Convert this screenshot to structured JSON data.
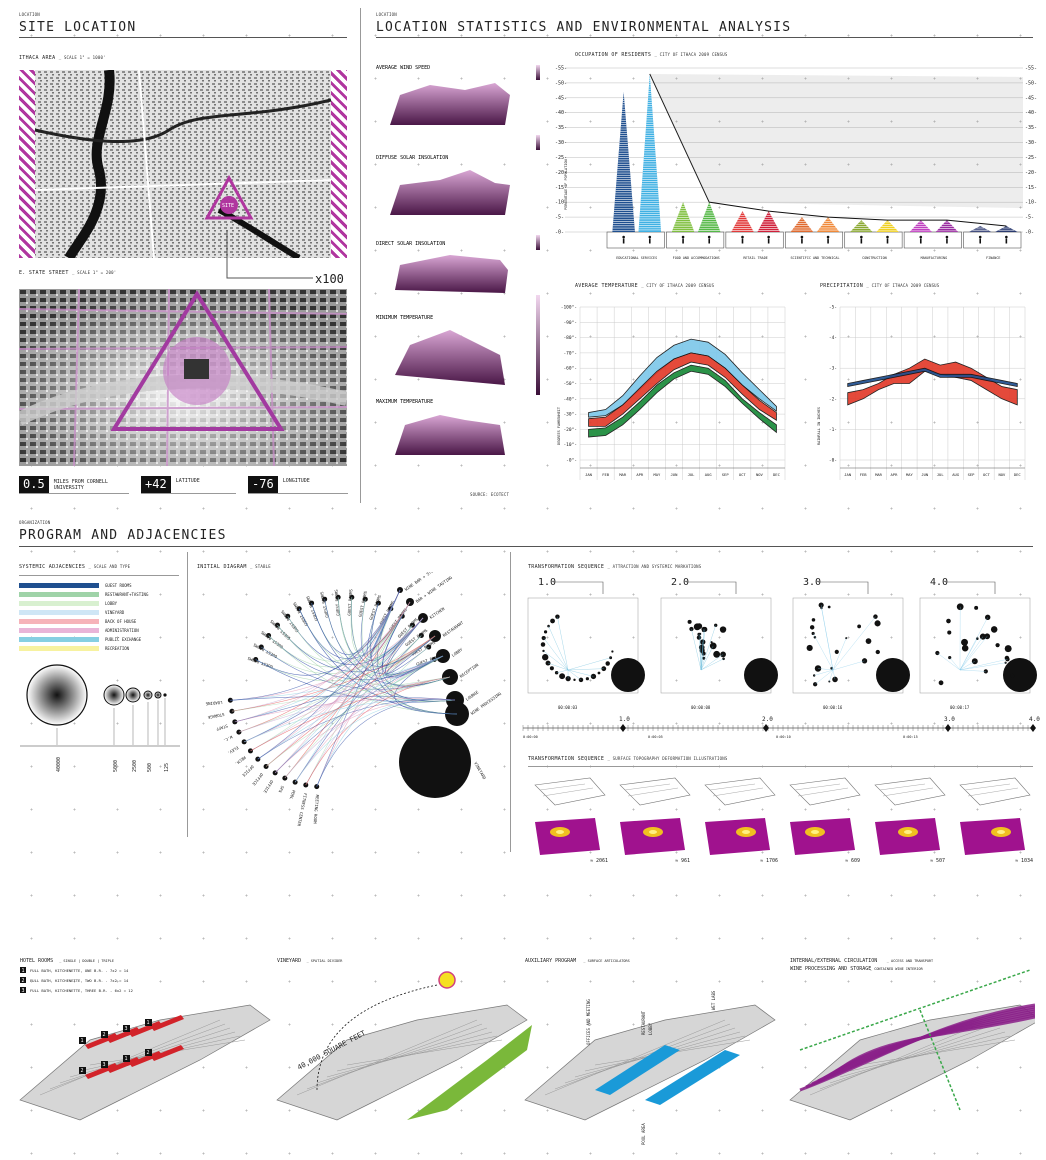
{
  "sections": {
    "site_location": {
      "kicker": "LOCATION",
      "title": "SITE LOCATION",
      "map1_label": "ITHACA AREA",
      "map1_scale": "_ SCALE 1\" = 1000'",
      "map2_label": "E. STATE STREET",
      "map2_scale": "_ SCALE 1\" = 200'",
      "site_marker": "SITE",
      "zoom": "x100",
      "stats": [
        {
          "value": "0.5",
          "label": "MILES FROM CORNELL UNIVERSITY"
        },
        {
          "value": "+42",
          "label": "LATITUDE"
        },
        {
          "value": "-76",
          "label": "LONGITUDE"
        }
      ]
    },
    "statistics": {
      "kicker": "LOCATION",
      "title": "LOCATION STATISTICS AND ENVIRONMENTAL ANALYSIS",
      "terrain_labels": [
        "AVERAGE WIND SPEED",
        "DIFFUSE SOLAR INSOLATION",
        "DIRECT SOLAR INSOLATION",
        "MINIMUM TEMPERATURE",
        "MAXIMUM TEMPERATURE"
      ],
      "source": "SOURCE: ECOTECT"
    },
    "program": {
      "kicker": "ORGANIZATION",
      "title": "PROGRAM AND ADJACENCIES",
      "systemic_title": "SYSTEMIC ADJACENCIES",
      "systemic_sub": "_ SCALE AND TYPE",
      "initial_title": "INITIAL DIAGRAM",
      "initial_sub": "_ STABLE",
      "trans1_title": "TRANSFORMATION SEQUENCE",
      "trans1_sub": "_ ATTRACTION AND SYSTEMIC MARKATIONS",
      "trans2_title": "TRANSFORMATION SEQUENCE",
      "trans2_sub": "_ SURFACE TOPOGRAPHY DEFORMATION ILLUSTRATIONS"
    }
  },
  "legend": [
    {
      "label": "GUEST ROOMS",
      "color": "#1f4f8f"
    },
    {
      "label": "RESTAURANT+TASTING",
      "color": "#9fd3a8"
    },
    {
      "label": "LOBBY",
      "color": "#d8f0d0"
    },
    {
      "label": "VINEYARD",
      "color": "#cfe6f5"
    },
    {
      "label": "BACK OF HOUSE",
      "color": "#f6b3b9"
    },
    {
      "label": "ADMINISTRATION",
      "color": "#e9b5d8"
    },
    {
      "label": "PUBLIC EXCHANGE",
      "color": "#86cfe2"
    },
    {
      "label": "RECREATION",
      "color": "#f7f2a0"
    }
  ],
  "scale_circles": [
    "40000",
    "5000",
    "2500",
    "500",
    "125"
  ],
  "stages": [
    "1.0",
    "2.0",
    "3.0",
    "4.0"
  ],
  "stage_times": [
    "00:00:03",
    "00:00:08",
    "00:00:16",
    "00:00:17"
  ],
  "timeline_ticks": [
    "0:00:00",
    "0:00:05",
    "0:00:10",
    "0:00:15"
  ],
  "topo_values": [
    "≈ 2061",
    "≈ 961",
    "≈ 1706",
    "≈ 609",
    "≈ 507",
    "≈ 1034"
  ],
  "chord_left_labels": [
    "GUEST ROOMS",
    "GUEST ROOMS",
    "GUEST ROOMS",
    "GUEST ROOMS",
    "GUEST ROOMS",
    "GUEST ROOMS",
    "GUEST ROOMS",
    "GUEST ROOMS",
    "GUEST ROOMS",
    "GUEST ROOMS",
    "GUEST ROOMS",
    "GUEST ROOMS",
    "GUEST ROOMS",
    "GUEST ROOMS",
    "GUEST ROOMS",
    "GUEST ROOMS",
    "GUEST ROOMS",
    "GUEST ROOMS"
  ],
  "chord_right_labels": [
    "WINE BAR + STORAGE",
    "BAR + WINE TASTING",
    "KITCHEN",
    "RESTAURANT",
    "LOBBY",
    "RECEPTION",
    "LOUNGE",
    "WINE PROCESSING",
    "VINEYARD"
  ],
  "chord_bottom_labels": [
    "MEETING ROOM",
    "FITNESS CENTER",
    "POOL",
    "SPA",
    "OFFICE",
    "OFFICE",
    "OFFICE",
    "MECH.",
    "ELEV.",
    "W.C.",
    "STAFF",
    "STORAGE",
    "LOADING"
  ],
  "bottom_panels": [
    {
      "title": "HOTEL ROOMS",
      "sub": "_ SINGLE | DOUBLE | TRIPLE"
    },
    {
      "title": "VINEYARD",
      "sub": "_ SPATIAL DIVIDER"
    },
    {
      "title": "AUXILIARY PROGRAM",
      "sub": "_ SURFACE ARTICULATORS"
    },
    {
      "title": "INTERNAL/EXTERNAL CIRCULATION",
      "sub": "_ ACCESS AND TRANSPORT"
    }
  ],
  "hotel_room_types": [
    {
      "num": "1",
      "text": "FULL BATH, KITCHENETTE, ONE B.R. - 7x2 = 14"
    },
    {
      "num": "2",
      "text": "FULL BATH, KITCHENETTE, TWO B.R. - 7x2 = 14"
    },
    {
      "num": "3",
      "text": "FULL BATH, KITCHENETTE, THREE B.R. - 6x2 = 12"
    }
  ],
  "wine_processing": "WINE PROCESSING AND STORAGE",
  "wine_processing_sub": "_ CONTAINED WINE INTERIOR",
  "vineyard_area": "40,000 SQUARE FEET",
  "aux_labels": [
    "OFFICES AND MEETING",
    "RESTAURANT",
    "LOBBY",
    "WET LABS",
    "POOL AREA"
  ],
  "chart_data": [
    {
      "type": "bar",
      "title": "OCCUPATION OF RESIDENTS",
      "subtitle": "_ CITY OF ITHACA 2009 CENSUS",
      "ylabel": "PERCENTAGE OF POPULATION",
      "ylim": [
        0,
        55
      ],
      "yticks": [
        "-0-",
        "-5-",
        "-10-",
        "-15-",
        "-20-",
        "-25-",
        "-30-",
        "-35-",
        "-40-",
        "-45-",
        "-50-",
        "-55-"
      ],
      "categories": [
        "EDUCATIONAL SERVICES",
        "FOOD AND ACCOMMODATIONS",
        "RETAIL TRADE",
        "SCIENTIFIC AND TECHNICAL",
        "CONSTRUCTION",
        "MANUFACTURING",
        "FINANCE"
      ],
      "series": [
        {
          "name": "",
          "values": [
            47,
            10,
            7,
            5,
            4,
            4,
            2
          ]
        },
        {
          "name": "",
          "values": [
            53,
            10,
            7,
            5,
            4,
            4,
            2
          ]
        }
      ],
      "colors": [
        [
          "#1f4f8f",
          "#3fb0e3"
        ],
        [
          "#7fbf3f",
          "#55b847"
        ],
        [
          "#e23b3b",
          "#d0203a"
        ],
        [
          "#e06a2f",
          "#f08a3a"
        ],
        [
          "#8aa830",
          "#f0d020"
        ],
        [
          "#c03fc0",
          "#9a2aa0"
        ],
        [
          "#444f80",
          "#2a3a70"
        ]
      ]
    },
    {
      "type": "area",
      "title": "AVERAGE TEMPERATURE",
      "subtitle": "_ CITY OF ITHACA 2009 CENSUS",
      "ylabel": "DEGREES FAHRENHEIT",
      "ylim": [
        0,
        100
      ],
      "yticks": [
        "-0°-",
        "-10°-",
        "-20°-",
        "-30°-",
        "-40°-",
        "-50°-",
        "-60°-",
        "-70°-",
        "-80°-",
        "-90°-",
        "-100°-"
      ],
      "categories": [
        "JAN",
        "FEB",
        "MAR",
        "APR",
        "MAY",
        "JUN",
        "JUL",
        "AUG",
        "SEP",
        "OCT",
        "NOV",
        "DEC"
      ],
      "series": [
        {
          "name": "",
          "color": "#7ec8ea",
          "upper": [
            31,
            33,
            42,
            55,
            67,
            75,
            79,
            77,
            69,
            57,
            46,
            35
          ],
          "lower": [
            28,
            29,
            36,
            46,
            57,
            66,
            70,
            68,
            60,
            49,
            40,
            32
          ]
        },
        {
          "name": "",
          "color": "#e23b2b",
          "upper": [
            27,
            28,
            36,
            47,
            58,
            66,
            70,
            68,
            60,
            49,
            39,
            31
          ],
          "lower": [
            22,
            22,
            30,
            40,
            50,
            59,
            64,
            62,
            54,
            43,
            33,
            26
          ]
        },
        {
          "name": "",
          "color": "#1a8a3a",
          "upper": [
            20,
            21,
            28,
            38,
            49,
            57,
            62,
            60,
            52,
            40,
            31,
            23
          ],
          "lower": [
            15,
            16,
            23,
            33,
            44,
            53,
            58,
            56,
            48,
            37,
            27,
            18
          ]
        }
      ]
    },
    {
      "type": "area",
      "title": "PRECIPITATION",
      "subtitle": "_ CITY OF ITHACA 2009 CENSUS",
      "ylabel": "RAINFALL IN INCHES",
      "ylim": [
        0,
        5
      ],
      "yticks": [
        "-0-",
        "-1-",
        "-2-",
        "-3-",
        "-4-",
        "-5-"
      ],
      "categories": [
        "JAN",
        "FEB",
        "MAR",
        "APR",
        "MAY",
        "JUN",
        "JUL",
        "AUG",
        "SEP",
        "OCT",
        "NOV",
        "DEC"
      ],
      "series": [
        {
          "name": "",
          "color": "#e23b2b",
          "upper": [
            2.2,
            2.3,
            2.5,
            2.8,
            3.0,
            3.3,
            3.1,
            3.2,
            3.0,
            2.7,
            2.4,
            2.3
          ],
          "lower": [
            1.8,
            2.0,
            2.3,
            2.5,
            2.5,
            2.9,
            2.8,
            2.7,
            2.6,
            2.3,
            2.0,
            1.8
          ]
        },
        {
          "name": "",
          "color": "#1f4f8f",
          "upper": [
            2.5,
            2.6,
            2.7,
            2.8,
            2.9,
            3.0,
            2.8,
            2.8,
            2.8,
            2.7,
            2.6,
            2.5
          ],
          "lower": [
            2.4,
            2.5,
            2.6,
            2.7,
            2.8,
            2.9,
            2.7,
            2.7,
            2.7,
            2.6,
            2.5,
            2.4
          ]
        }
      ]
    }
  ]
}
